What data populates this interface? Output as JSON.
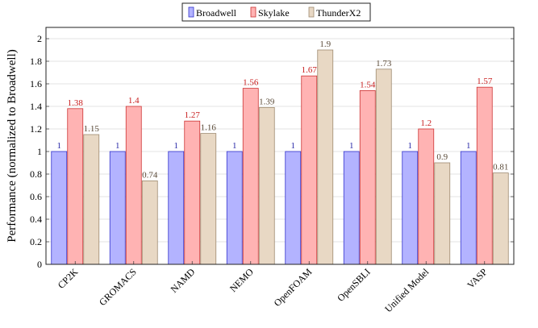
{
  "chart_data": {
    "type": "bar",
    "title": "",
    "xlabel": "",
    "ylabel": "Performance (normalized to Broadwell)",
    "ylim": [
      0,
      2.1
    ],
    "yticks": [
      "0",
      "0.2",
      "0.4",
      "0.6",
      "0.8",
      "1",
      "1.2",
      "1.4",
      "1.6",
      "1.8",
      "2"
    ],
    "grid": true,
    "legend_position": "top-center",
    "categories": [
      "CP2K",
      "GROMACS",
      "NAMD",
      "NEMO",
      "OpenFOAM",
      "OpenSBLI",
      "Unified Model",
      "VASP"
    ],
    "series": [
      {
        "name": "Broadwell",
        "fill": "#b3b3ff",
        "stroke": "#3333cc",
        "label_color": "#2a2aa8",
        "values": [
          1,
          1,
          1,
          1,
          1,
          1,
          1,
          1
        ],
        "labels": [
          "1",
          "1",
          "1",
          "1",
          "1",
          "1",
          "1",
          "1"
        ]
      },
      {
        "name": "Skylake",
        "fill": "#ffb3b3",
        "stroke": "#cc3333",
        "label_color": "#c81e1e",
        "values": [
          1.38,
          1.4,
          1.27,
          1.56,
          1.67,
          1.54,
          1.2,
          1.57
        ],
        "labels": [
          "1.38",
          "1.4",
          "1.27",
          "1.56",
          "1.67",
          "1.54",
          "1.2",
          "1.57"
        ]
      },
      {
        "name": "ThunderX2",
        "fill": "#e8d8c4",
        "stroke": "#9e8a70",
        "label_color": "#5a4a38",
        "values": [
          1.15,
          0.74,
          1.16,
          1.39,
          1.9,
          1.73,
          0.9,
          0.81
        ],
        "labels": [
          "1.15",
          "0.74",
          "1.16",
          "1.39",
          "1.9",
          "1.73",
          "0.9",
          "0.81"
        ]
      }
    ]
  }
}
